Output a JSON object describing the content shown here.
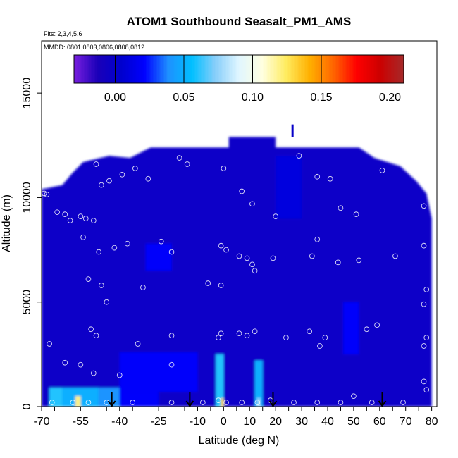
{
  "chart_data": {
    "type": "heatmap",
    "title": "ATOM1 Southbound Seasalt_PM1_AMS",
    "subtitle_flights": "Flts: 2,3,4,5,6",
    "subtitle_dates": "MMDD: 0801,0803,0806,0808,0812",
    "xlabel": "Latitude (deg N)",
    "ylabel": "Altitude (m)",
    "xlim": [
      -70,
      82
    ],
    "ylim": [
      0,
      17500
    ],
    "xticks": [
      -70,
      -55,
      -40,
      -25,
      -10,
      0,
      10,
      20,
      30,
      40,
      50,
      60,
      70,
      80
    ],
    "xtick_labels": [
      "-70",
      "-55",
      "-40",
      "-25",
      "-10",
      "0",
      "10",
      "20",
      "30",
      "40",
      "50",
      "60",
      "70",
      "80"
    ],
    "yticks": [
      0,
      5000,
      10000,
      15000
    ],
    "ytick_labels": [
      "0",
      "5000",
      "10000",
      "15000"
    ],
    "colorbar": {
      "range": [
        -0.03,
        0.21
      ],
      "ticks": [
        0.0,
        0.05,
        0.1,
        0.15,
        0.2
      ],
      "tick_labels": [
        "0.00",
        "0.05",
        "0.10",
        "0.15",
        "0.20"
      ],
      "colors": [
        "#7a1fe0",
        "#1a00b8",
        "#0000cd",
        "#0000ff",
        "#1e90ff",
        "#00bfff",
        "#87cefa",
        "#e0f6ff",
        "#ffffe0",
        "#ffec60",
        "#ffb000",
        "#ff6600",
        "#ff0000",
        "#cc0000",
        "#a52a2a"
      ]
    },
    "background_value": 0.0,
    "cells": [
      {
        "lat": [
          -67,
          -62
        ],
        "alt": [
          0,
          900
        ],
        "value": 0.06
      },
      {
        "lat": [
          -62,
          -48
        ],
        "alt": [
          0,
          900
        ],
        "value": 0.05
      },
      {
        "lat": [
          -57,
          -55
        ],
        "alt": [
          0,
          500
        ],
        "value": 0.12
      },
      {
        "lat": [
          -48,
          -40
        ],
        "alt": [
          0,
          900
        ],
        "value": 0.04
      },
      {
        "lat": [
          -40,
          -25
        ],
        "alt": [
          0,
          700
        ],
        "value": 0.02
      },
      {
        "lat": [
          -40,
          -10
        ],
        "alt": [
          700,
          2600
        ],
        "value": 0.02
      },
      {
        "lat": [
          -3,
          0
        ],
        "alt": [
          0,
          2500
        ],
        "value": 0.06
      },
      {
        "lat": [
          -1,
          0
        ],
        "alt": [
          0,
          400
        ],
        "value": 0.13
      },
      {
        "lat": [
          12,
          15
        ],
        "alt": [
          0,
          2200
        ],
        "value": 0.05
      },
      {
        "lat": [
          13,
          14
        ],
        "alt": [
          0,
          400
        ],
        "value": 0.08
      },
      {
        "lat": [
          -30,
          -20
        ],
        "alt": [
          6500,
          7800
        ],
        "value": 0.02
      },
      {
        "lat": [
          46,
          52
        ],
        "alt": [
          2500,
          5000
        ],
        "value": 0.02
      },
      {
        "lat": [
          20,
          30
        ],
        "alt": [
          9000,
          12000
        ],
        "value": 0.01
      }
    ],
    "profile_tops": [
      {
        "lat": -70,
        "alt": 10400
      },
      {
        "lat": -62,
        "alt": 10600
      },
      {
        "lat": -58,
        "alt": 11200
      },
      {
        "lat": -54,
        "alt": 11700
      },
      {
        "lat": -44,
        "alt": 12000
      },
      {
        "lat": -36,
        "alt": 11900
      },
      {
        "lat": -28,
        "alt": 12400
      },
      {
        "lat": 2,
        "alt": 12400
      },
      {
        "lat": 2,
        "alt": 12900
      },
      {
        "lat": 20,
        "alt": 12900
      },
      {
        "lat": 20,
        "alt": 12400
      },
      {
        "lat": 52,
        "alt": 12400
      },
      {
        "lat": 58,
        "alt": 11900
      },
      {
        "lat": 68,
        "alt": 11500
      },
      {
        "lat": 74,
        "alt": 10800
      },
      {
        "lat": 78,
        "alt": 10200
      },
      {
        "lat": 80,
        "alt": 9000
      }
    ],
    "profile_bottom_right": {
      "lat": 80,
      "alt": 0
    },
    "spike": {
      "lat": 26.5,
      "alt": [
        12900,
        13500
      ]
    },
    "sample_points": [
      {
        "lat": -69,
        "alt": 10200
      },
      {
        "lat": -68,
        "alt": 10150
      },
      {
        "lat": -64,
        "alt": 9300
      },
      {
        "lat": -61,
        "alt": 9200
      },
      {
        "lat": -59,
        "alt": 8900
      },
      {
        "lat": -55,
        "alt": 9100
      },
      {
        "lat": -53,
        "alt": 9000
      },
      {
        "lat": -50,
        "alt": 8900
      },
      {
        "lat": -54,
        "alt": 8100
      },
      {
        "lat": -49,
        "alt": 11600
      },
      {
        "lat": -47,
        "alt": 10600
      },
      {
        "lat": -44,
        "alt": 10800
      },
      {
        "lat": -39,
        "alt": 11100
      },
      {
        "lat": -34,
        "alt": 11400
      },
      {
        "lat": -29,
        "alt": 10900
      },
      {
        "lat": -17,
        "alt": 11900
      },
      {
        "lat": -14,
        "alt": 11600
      },
      {
        "lat": 0,
        "alt": 11400
      },
      {
        "lat": 7,
        "alt": 10300
      },
      {
        "lat": 11,
        "alt": 9700
      },
      {
        "lat": 20,
        "alt": 9100
      },
      {
        "lat": 29,
        "alt": 12000
      },
      {
        "lat": 36,
        "alt": 11000
      },
      {
        "lat": 41,
        "alt": 10900
      },
      {
        "lat": 45,
        "alt": 9500
      },
      {
        "lat": 51,
        "alt": 9200
      },
      {
        "lat": 61,
        "alt": 11300
      },
      {
        "lat": 77,
        "alt": 9600
      },
      {
        "lat": -48,
        "alt": 7400
      },
      {
        "lat": -42,
        "alt": 7600
      },
      {
        "lat": -37,
        "alt": 7800
      },
      {
        "lat": -24,
        "alt": 7900
      },
      {
        "lat": -20,
        "alt": 7400
      },
      {
        "lat": -1,
        "alt": 7700
      },
      {
        "lat": 1,
        "alt": 7500
      },
      {
        "lat": 6,
        "alt": 7200
      },
      {
        "lat": 9,
        "alt": 7100
      },
      {
        "lat": 11,
        "alt": 6800
      },
      {
        "lat": 12,
        "alt": 6500
      },
      {
        "lat": 19,
        "alt": 7100
      },
      {
        "lat": 34,
        "alt": 7200
      },
      {
        "lat": 36,
        "alt": 8000
      },
      {
        "lat": 44,
        "alt": 6900
      },
      {
        "lat": 52,
        "alt": 7000
      },
      {
        "lat": 66,
        "alt": 7200
      },
      {
        "lat": 77,
        "alt": 7700
      },
      {
        "lat": -52,
        "alt": 6100
      },
      {
        "lat": -47,
        "alt": 5800
      },
      {
        "lat": -45,
        "alt": 5000
      },
      {
        "lat": -31,
        "alt": 5700
      },
      {
        "lat": -6,
        "alt": 5900
      },
      {
        "lat": -1,
        "alt": 5800
      },
      {
        "lat": 78,
        "alt": 5600
      },
      {
        "lat": 77,
        "alt": 4900
      },
      {
        "lat": -51,
        "alt": 3700
      },
      {
        "lat": -49,
        "alt": 3400
      },
      {
        "lat": -33,
        "alt": 3000
      },
      {
        "lat": -20,
        "alt": 3400
      },
      {
        "lat": -2,
        "alt": 3300
      },
      {
        "lat": -1,
        "alt": 3500
      },
      {
        "lat": 6,
        "alt": 3500
      },
      {
        "lat": 9,
        "alt": 3400
      },
      {
        "lat": 12,
        "alt": 3600
      },
      {
        "lat": 24,
        "alt": 3300
      },
      {
        "lat": 33,
        "alt": 3600
      },
      {
        "lat": 37,
        "alt": 2900
      },
      {
        "lat": 39,
        "alt": 3300
      },
      {
        "lat": 55,
        "alt": 3700
      },
      {
        "lat": 59,
        "alt": 3900
      },
      {
        "lat": 78,
        "alt": 3300
      },
      {
        "lat": 77,
        "alt": 2900
      },
      {
        "lat": -67,
        "alt": 3000
      },
      {
        "lat": -61,
        "alt": 2100
      },
      {
        "lat": -55,
        "alt": 2000
      },
      {
        "lat": -50,
        "alt": 1600
      },
      {
        "lat": -40,
        "alt": 1500
      },
      {
        "lat": -20,
        "alt": 2000
      },
      {
        "lat": 77,
        "alt": 1200
      },
      {
        "lat": 78,
        "alt": 800
      },
      {
        "lat": -66,
        "alt": 200
      },
      {
        "lat": -58,
        "alt": 200
      },
      {
        "lat": -52,
        "alt": 200
      },
      {
        "lat": -45,
        "alt": 200
      },
      {
        "lat": -35,
        "alt": 200
      },
      {
        "lat": -20,
        "alt": 200
      },
      {
        "lat": -8,
        "alt": 200
      },
      {
        "lat": -2,
        "alt": 300
      },
      {
        "lat": 1,
        "alt": 200
      },
      {
        "lat": 7,
        "alt": 200
      },
      {
        "lat": 13,
        "alt": 200
      },
      {
        "lat": 18,
        "alt": 300
      },
      {
        "lat": 27,
        "alt": 200
      },
      {
        "lat": 36,
        "alt": 200
      },
      {
        "lat": 45,
        "alt": 200
      },
      {
        "lat": 50,
        "alt": 500
      },
      {
        "lat": 57,
        "alt": 200
      },
      {
        "lat": 69,
        "alt": 200
      }
    ],
    "arrow_latitudes": [
      -43,
      -13,
      19,
      61
    ]
  }
}
